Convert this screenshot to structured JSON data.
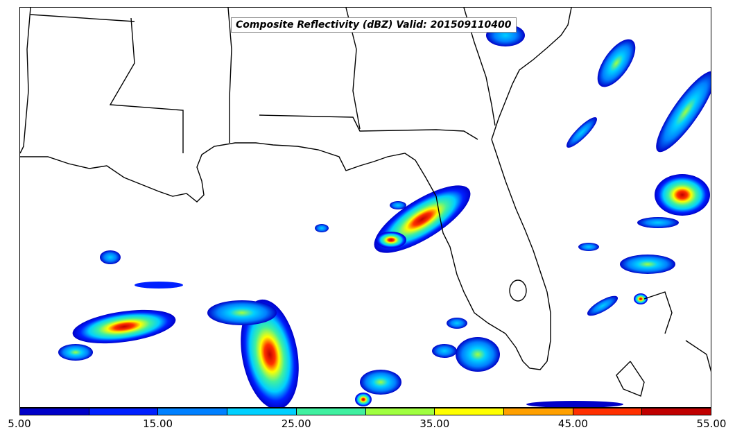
{
  "title": "Composite Reflectivity (dBZ) Valid: 201509110400",
  "colorbar": {
    "min": 5,
    "max": 55,
    "step": 5,
    "colors": [
      "#0000c8",
      "#0020ff",
      "#0080ff",
      "#00d0ff",
      "#40f0a0",
      "#a0ff40",
      "#ffff00",
      "#ffa000",
      "#ff3000",
      "#c00000"
    ],
    "tick_labels": [
      "5.00",
      "15.00",
      "25.00",
      "35.00",
      "45.00",
      "55.00"
    ]
  },
  "chart_data": {
    "type": "heatmap",
    "title": "Composite Reflectivity (dBZ) Valid: 201509110400",
    "variable": "Composite Reflectivity",
    "units": "dBZ",
    "valid_time": "201509110400",
    "range": [
      5,
      55
    ]
  }
}
